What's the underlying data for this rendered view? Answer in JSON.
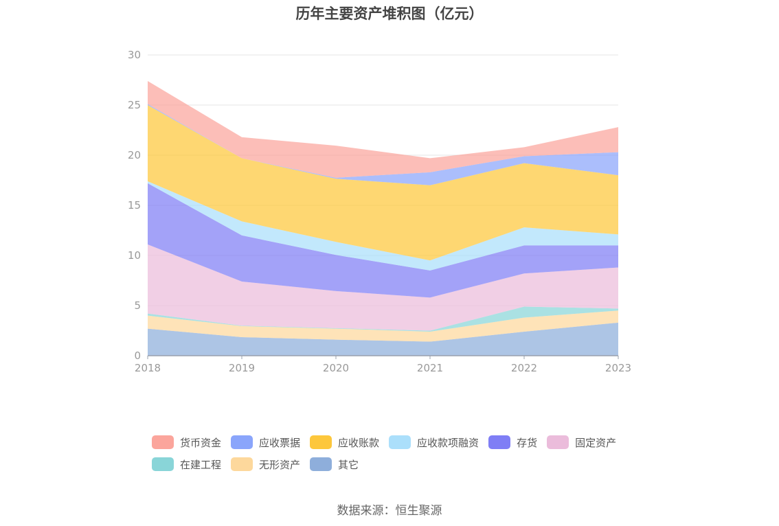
{
  "chart_data": {
    "type": "area",
    "stacked": true,
    "title": "历年主要资产堆积图（亿元）",
    "x": [
      "2018",
      "2019",
      "2020",
      "2021",
      "2022",
      "2023"
    ],
    "yticks": [
      "0",
      "5",
      "10",
      "15",
      "20",
      "25",
      "30"
    ],
    "ylim": [
      0,
      30
    ],
    "grid": true,
    "legend_position": "bottom",
    "series": [
      {
        "name": "其它",
        "color": "#8eaedb",
        "values": [
          2.7,
          1.85,
          1.6,
          1.4,
          2.4,
          3.3
        ]
      },
      {
        "name": "无形资产",
        "color": "#fdd89c",
        "values": [
          1.3,
          1.1,
          1.1,
          1.0,
          1.4,
          1.2
        ]
      },
      {
        "name": "在建工程",
        "color": "#89d5d8",
        "values": [
          0.2,
          0.05,
          0.05,
          0.1,
          1.1,
          0.2
        ]
      },
      {
        "name": "固定资产",
        "color": "#ebbcdb",
        "values": [
          6.9,
          4.4,
          3.7,
          3.3,
          3.3,
          4.1
        ]
      },
      {
        "name": "存货",
        "color": "#7f7ef5",
        "values": [
          6.1,
          4.6,
          3.6,
          2.7,
          2.8,
          2.2
        ]
      },
      {
        "name": "应收款项融资",
        "color": "#abdffb",
        "values": [
          0.2,
          1.4,
          1.3,
          1.0,
          1.8,
          1.1
        ]
      },
      {
        "name": "应收账款",
        "color": "#fdc73c",
        "values": [
          7.6,
          6.3,
          6.3,
          7.5,
          6.4,
          5.9
        ]
      },
      {
        "name": "应收票据",
        "color": "#8aa5fb",
        "values": [
          0.1,
          0.0,
          0.1,
          1.3,
          0.7,
          2.3
        ]
      },
      {
        "name": "货币资金",
        "color": "#fba59c",
        "values": [
          2.3,
          2.1,
          3.2,
          1.4,
          0.9,
          2.5
        ]
      }
    ],
    "legend_order": [
      "货币资金",
      "应收票据",
      "应收账款",
      "应收款项融资",
      "存货",
      "固定资产",
      "在建工程",
      "无形资产",
      "其它"
    ]
  },
  "source_text": "数据来源：恒生聚源"
}
